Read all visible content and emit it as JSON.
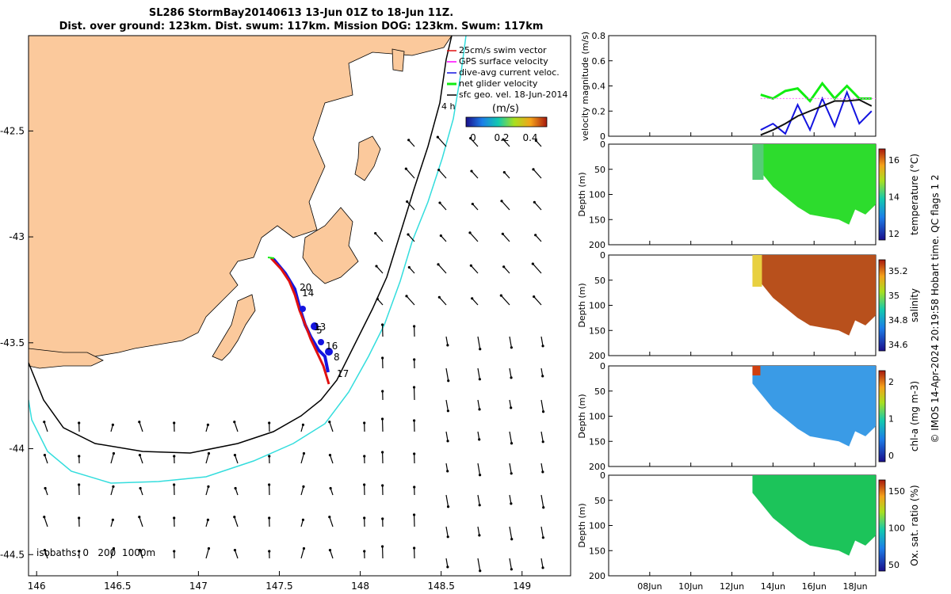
{
  "title": {
    "line1": "SL286 StormBay20140613 13-Jun 01Z to 18-Jun 11Z.",
    "line2": "Dist. over ground: 123km. Dist. swum: 117km. Mission DOG: 123km. Swum: 117km"
  },
  "colors": {
    "land": "#fbc99c",
    "isobath_200": "#000000",
    "isobath_1000": "#33dddd",
    "track": "#e01010",
    "dive_avg": "#1414e0",
    "net_velocity": "#11ee11",
    "gps": "#ff00ff",
    "temperature_fill": "#2ddc2d",
    "salinity_fill": "#b8501c",
    "chla_fill": "#3a9be6",
    "oxygen_fill": "#1cc45a"
  },
  "map": {
    "legend": [
      "25cm/s swim vector",
      "GPS surface velocity",
      "dive-avg current veloc.",
      "net glider velocity",
      "sfc geo. vel. 18-Jun-2014"
    ],
    "time_label": "4 h",
    "colorbar_unit": "(m/s)",
    "colorbar_ticks": [
      "0",
      "0.2",
      "0.4"
    ],
    "isobaths_label": "isobaths: 0   200  1000m",
    "x_ticks": [
      "146",
      "146.5",
      "147",
      "147.5",
      "148",
      "148.5",
      "149"
    ],
    "y_ticks": [
      "-42.5",
      "-43",
      "-43.5",
      "-44",
      "-44.5"
    ],
    "xlim": [
      145.95,
      149.3
    ],
    "ylim": [
      -44.6,
      -42.05
    ],
    "day_labels": [
      "20",
      "14",
      "13",
      "5",
      "16",
      "8",
      "17"
    ]
  },
  "timeseries": {
    "x_ticks": [
      "08Jun",
      "10Jun",
      "12Jun",
      "14Jun",
      "16Jun",
      "18Jun"
    ],
    "velocity": {
      "ylabel": "velocity magnitude (m/s)",
      "y_ticks": [
        "0",
        "0.2",
        "0.4",
        "0.6",
        "0.8"
      ],
      "ylim": [
        0,
        0.8
      ]
    },
    "panels": [
      {
        "ylabel": "Depth (m)",
        "cblabel": "temperature (°C)",
        "cbticks": [
          "12",
          "14",
          "16"
        ]
      },
      {
        "ylabel": "Depth (m)",
        "cblabel": "salinity",
        "cbticks": [
          "34.6",
          "34.8",
          "35",
          "35.2"
        ]
      },
      {
        "ylabel": "Depth (m)",
        "cblabel": "chl-a (mg m-3)",
        "cbticks": [
          "0",
          "1",
          "2"
        ]
      },
      {
        "ylabel": "Depth (m)",
        "cblabel": "Ox. sat. ratio (%)",
        "cbticks": [
          "50",
          "100",
          "150"
        ]
      }
    ],
    "depth_ticks": [
      "0",
      "50",
      "100",
      "150",
      "200"
    ]
  },
  "footer": "© IMOS 14-Apr-2024 20:19:58 Hobart time. QC flags 1  2",
  "chart_data": [
    {
      "type": "line",
      "name": "glider-track-map",
      "x_label": "",
      "y_label": "",
      "xlim": [
        145.95,
        149.3
      ],
      "ylim": [
        -44.6,
        -42.05
      ],
      "series": [
        {
          "values": [
            [
              147.45,
              -43.12
            ],
            [
              147.52,
              -43.18
            ],
            [
              147.58,
              -43.25
            ],
            [
              147.63,
              -43.34
            ],
            [
              147.66,
              -43.43
            ],
            [
              147.7,
              -43.5
            ],
            [
              147.76,
              -43.57
            ],
            [
              147.8,
              -43.62
            ],
            [
              147.83,
              -43.69
            ]
          ]
        }
      ]
    },
    {
      "type": "line",
      "name": "velocity-magnitude",
      "ylabel": "velocity magnitude (m/s)",
      "xlim": [
        "06Jun",
        "19Jun"
      ],
      "ylim": [
        0,
        0.8
      ],
      "x": [
        13.4,
        14.0,
        14.6,
        15.2,
        15.8,
        16.4,
        17.0,
        17.6,
        18.2,
        18.8
      ],
      "series": [
        {
          "values": [
            0.33,
            0.3,
            0.36,
            0.38,
            0.28,
            0.42,
            0.3,
            0.4,
            0.3,
            0.3
          ]
        },
        {
          "values": [
            0.05,
            0.1,
            0.02,
            0.25,
            0.05,
            0.3,
            0.08,
            0.35,
            0.1,
            0.2
          ]
        },
        {
          "values": [
            0.01,
            0.05,
            0.1,
            0.16,
            0.2,
            0.24,
            0.28,
            0.28,
            0.29,
            0.24
          ]
        }
      ]
    }
  ]
}
